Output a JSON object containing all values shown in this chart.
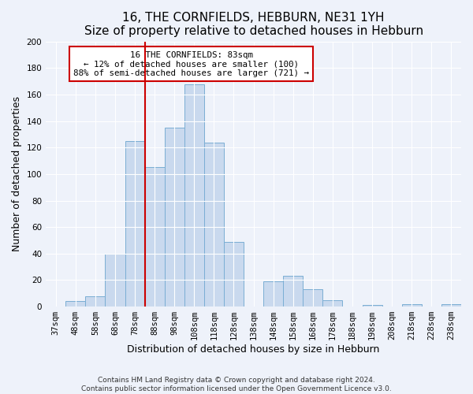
{
  "title": "16, THE CORNFIELDS, HEBBURN, NE31 1YH",
  "subtitle": "Size of property relative to detached houses in Hebburn",
  "xlabel": "Distribution of detached houses by size in Hebburn",
  "ylabel": "Number of detached properties",
  "bar_labels": [
    "37sqm",
    "48sqm",
    "58sqm",
    "68sqm",
    "78sqm",
    "88sqm",
    "98sqm",
    "108sqm",
    "118sqm",
    "128sqm",
    "138sqm",
    "148sqm",
    "158sqm",
    "168sqm",
    "178sqm",
    "188sqm",
    "198sqm",
    "208sqm",
    "218sqm",
    "228sqm",
    "238sqm"
  ],
  "bar_values": [
    0,
    4,
    8,
    40,
    125,
    105,
    135,
    168,
    124,
    49,
    0,
    19,
    23,
    13,
    5,
    0,
    1,
    0,
    2,
    0,
    2
  ],
  "bar_color": "#c9d9ee",
  "bar_edge_color": "#7aaed4",
  "vline_color": "#cc0000",
  "annotation_title": "16 THE CORNFIELDS: 83sqm",
  "annotation_line1": "← 12% of detached houses are smaller (100)",
  "annotation_line2": "88% of semi-detached houses are larger (721) →",
  "annotation_box_color": "#ffffff",
  "annotation_box_edge": "#cc0000",
  "ylim": [
    0,
    200
  ],
  "yticks": [
    0,
    20,
    40,
    60,
    80,
    100,
    120,
    140,
    160,
    180,
    200
  ],
  "footer1": "Contains HM Land Registry data © Crown copyright and database right 2024.",
  "footer2": "Contains public sector information licensed under the Open Government Licence v3.0.",
  "bg_color": "#eef2fa",
  "plot_bg_color": "#eef2fa",
  "title_fontsize": 11,
  "subtitle_fontsize": 9.5,
  "axis_label_fontsize": 9,
  "tick_fontsize": 7.5,
  "footer_fontsize": 6.5,
  "grid_color": "#ffffff"
}
